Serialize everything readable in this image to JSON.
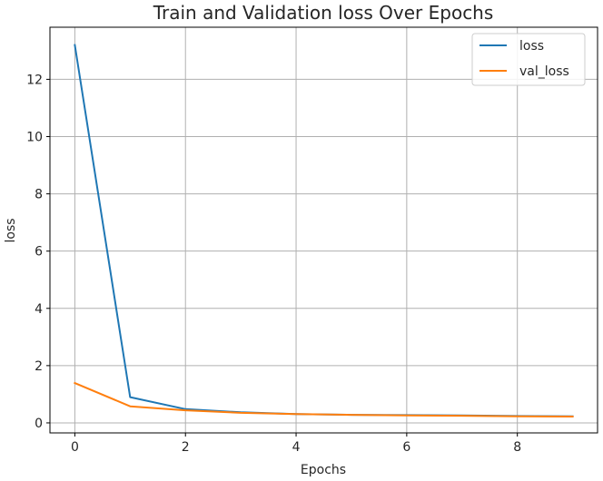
{
  "chart_data": {
    "type": "line",
    "title": "Train and Validation loss Over Epochs",
    "xlabel": "Epochs",
    "ylabel": "loss",
    "xlim": [
      -0.45,
      9.45
    ],
    "ylim": [
      -0.35,
      13.82
    ],
    "xticks": [
      0,
      2,
      4,
      6,
      8
    ],
    "yticks": [
      0,
      2,
      4,
      6,
      8,
      10,
      12
    ],
    "grid": true,
    "legend_position": "upper right",
    "x": [
      0,
      1,
      2,
      3,
      4,
      5,
      6,
      7,
      8,
      9
    ],
    "series": [
      {
        "name": "loss",
        "color": "#1f77b4",
        "values": [
          13.2,
          0.9,
          0.48,
          0.37,
          0.31,
          0.28,
          0.27,
          0.26,
          0.24,
          0.23
        ]
      },
      {
        "name": "val_loss",
        "color": "#ff7f0e",
        "values": [
          1.39,
          0.58,
          0.44,
          0.35,
          0.31,
          0.28,
          0.26,
          0.25,
          0.23,
          0.22
        ]
      }
    ]
  }
}
